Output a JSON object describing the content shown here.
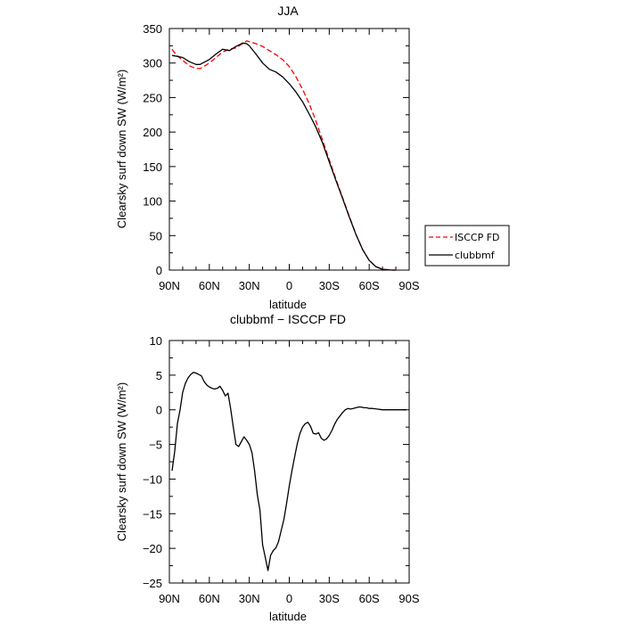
{
  "chart_data": [
    {
      "type": "line",
      "title": "JJA",
      "xlabel": "latitude",
      "ylabel": "Clearsky surf down SW (W/m²)",
      "x_ticks": [
        90,
        60,
        30,
        0,
        -30,
        -60,
        -90
      ],
      "x_tick_labels": [
        "90N",
        "60N",
        "30N",
        "0",
        "30S",
        "60S",
        "90S"
      ],
      "xlim": [
        90,
        -90
      ],
      "y_ticks": [
        0,
        50,
        100,
        150,
        200,
        250,
        300,
        350
      ],
      "y_tick_labels": [
        "0",
        "50",
        "100",
        "150",
        "200",
        "250",
        "300",
        "350"
      ],
      "ylim": [
        0,
        350
      ],
      "grid": false,
      "legend_position": "right-outside",
      "series": [
        {
          "name": "ISCCP FD",
          "color": "#ff0000",
          "style": "dashed",
          "x": [
            88,
            85,
            80,
            75,
            70,
            67,
            65,
            60,
            55,
            50,
            45,
            40,
            35,
            32,
            30,
            25,
            20,
            15,
            10,
            5,
            0,
            -5,
            -10,
            -15,
            -20,
            -25,
            -30,
            -35,
            -40,
            -45,
            -50,
            -55,
            -60,
            -65,
            -70,
            -75,
            -78,
            -80
          ],
          "y": [
            320,
            312,
            304,
            296,
            292,
            292,
            294,
            300,
            308,
            316,
            320,
            322,
            328,
            332,
            331,
            328,
            324,
            318,
            312,
            305,
            295,
            280,
            262,
            241,
            216,
            188,
            160,
            132,
            105,
            78,
            52,
            30,
            14,
            5,
            1.2,
            0.2,
            0,
            0
          ]
        },
        {
          "name": "clubbmf",
          "color": "#000000",
          "style": "solid",
          "x": [
            88,
            85,
            80,
            75,
            70,
            67,
            65,
            60,
            55,
            50,
            45,
            40,
            35,
            32,
            30,
            25,
            20,
            15,
            10,
            5,
            0,
            -5,
            -10,
            -15,
            -20,
            -25,
            -30,
            -35,
            -40,
            -45,
            -50,
            -55,
            -60,
            -65,
            -70,
            -75,
            -78,
            -80
          ],
          "y": [
            311,
            310,
            308,
            302,
            298,
            298,
            300,
            305,
            313,
            320,
            318,
            324,
            329,
            328,
            325,
            313,
            300,
            291,
            287,
            280,
            270,
            258,
            244,
            226,
            207,
            184,
            157,
            130,
            104,
            77,
            52,
            30,
            14,
            5,
            1.2,
            0.2,
            0,
            0
          ]
        }
      ]
    },
    {
      "type": "line",
      "title": "clubbmf − ISCCP FD",
      "xlabel": "latitude",
      "ylabel": "Clearsky surf down SW (W/m²)",
      "x_ticks": [
        90,
        60,
        30,
        0,
        -30,
        -60,
        -90
      ],
      "x_tick_labels": [
        "90N",
        "60N",
        "30N",
        "0",
        "30S",
        "60S",
        "90S"
      ],
      "xlim": [
        90,
        -90
      ],
      "y_ticks": [
        -25,
        -20,
        -15,
        -10,
        -5,
        0,
        5,
        10
      ],
      "y_tick_labels": [
        "−25",
        "−20",
        "−15",
        "−10",
        "−5",
        "0",
        "5",
        "10"
      ],
      "ylim": [
        -25,
        10
      ],
      "grid": false,
      "series": [
        {
          "color": "#000000",
          "style": "solid",
          "x": [
            88,
            86,
            84,
            82,
            80,
            78,
            76,
            74,
            72,
            70,
            68,
            66,
            64,
            62,
            60,
            58,
            56,
            54,
            52,
            50,
            48,
            46,
            44,
            42,
            40,
            38,
            36,
            34,
            32,
            30,
            28,
            26,
            24,
            22,
            20,
            18,
            16,
            14,
            12,
            10,
            8,
            6,
            4,
            2,
            0,
            -2,
            -4,
            -6,
            -8,
            -10,
            -12,
            -14,
            -16,
            -18,
            -20,
            -22,
            -24,
            -26,
            -28,
            -30,
            -32,
            -34,
            -36,
            -38,
            -40,
            -42,
            -44,
            -46,
            -48,
            -50,
            -52,
            -54,
            -56,
            -58,
            -60,
            -62,
            -64,
            -66,
            -68,
            -70,
            -75,
            -80,
            -85,
            -88
          ],
          "y": [
            -8.8,
            -6.0,
            -2.0,
            0.0,
            2.5,
            3.8,
            4.6,
            5.1,
            5.4,
            5.3,
            5.1,
            4.9,
            4.1,
            3.6,
            3.3,
            3.1,
            3.0,
            3.1,
            3.4,
            2.8,
            2.0,
            2.4,
            0.2,
            -2.5,
            -5.0,
            -5.3,
            -4.6,
            -3.9,
            -4.4,
            -5.0,
            -6.2,
            -8.8,
            -12.2,
            -14.5,
            -19.5,
            -21.3,
            -23.2,
            -21.0,
            -20.3,
            -19.9,
            -19.0,
            -17.4,
            -15.8,
            -13.5,
            -11.0,
            -8.8,
            -6.8,
            -4.9,
            -3.4,
            -2.5,
            -2.0,
            -1.8,
            -2.4,
            -3.4,
            -3.5,
            -3.3,
            -4.1,
            -4.4,
            -4.2,
            -3.7,
            -3.0,
            -2.1,
            -1.4,
            -0.9,
            -0.4,
            0.0,
            0.2,
            0.1,
            0.2,
            0.3,
            0.4,
            0.4,
            0.3,
            0.3,
            0.2,
            0.2,
            0.15,
            0.1,
            0.05,
            0.0,
            0.0,
            0.0,
            0.0,
            0.0
          ]
        }
      ]
    }
  ]
}
